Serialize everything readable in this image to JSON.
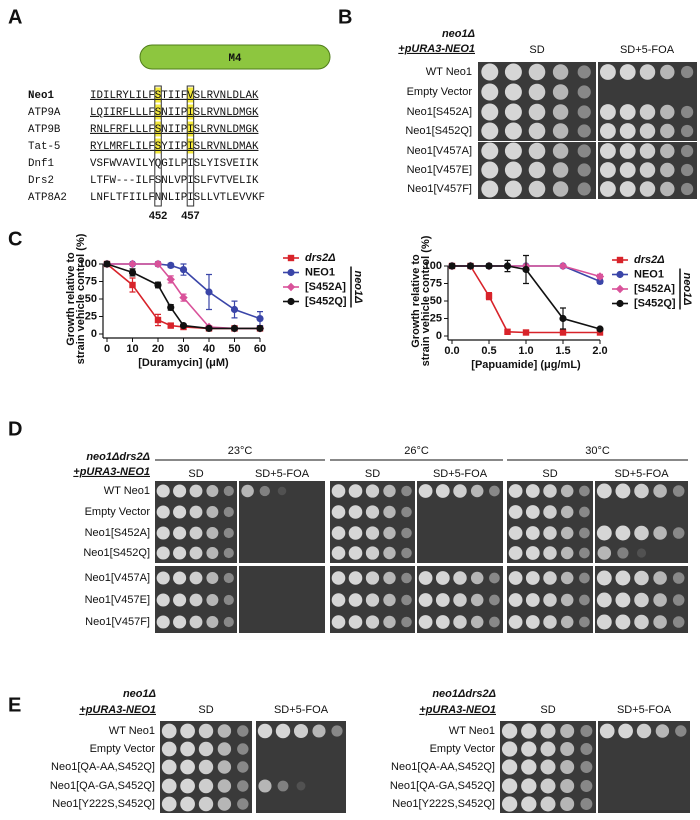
{
  "panel_labels": [
    "A",
    "B",
    "C",
    "D",
    "E"
  ],
  "panel_a": {
    "domain_label": "M4",
    "alignment": [
      {
        "name": "Neo1",
        "sequence": "IDILRYLILFSTIIFVSLRVNLDLAK"
      },
      {
        "name": "ATP9A",
        "sequence": "LQIIRFLLLFSNIIPISLRVNLDMGK"
      },
      {
        "name": "ATP9B",
        "sequence": "RNLFRFLLLFSNIIPISLRVNLDMGK"
      },
      {
        "name": "Tat-5",
        "sequence": "RYLMRFLILFSYIIPISLRVNLDMAK"
      },
      {
        "name": "Dnf1",
        "sequence": "VSFWVAVILYQGILPISLYISVEIIK"
      },
      {
        "name": "Drs2",
        "sequence": "LTFW---ILFSNLVPISLFVTVELIK"
      },
      {
        "name": "ATP8A2",
        "sequence": "LNFLTFIILFNNLIPISLLVTLEVVKF"
      }
    ],
    "positions": [
      "452",
      "457"
    ]
  },
  "panel_b": {
    "genotype": [
      "neo1Δ",
      "+pURA3-NEO1"
    ],
    "media": [
      "SD",
      "SD+5-FOA"
    ],
    "strains": [
      "WT Neo1",
      "Empty Vector",
      "Neo1[S452A]",
      "Neo1[S452Q]",
      "Neo1[V457A]",
      "Neo1[V457E]",
      "Neo1[V457F]"
    ]
  },
  "chart_data": [
    {
      "type": "line",
      "x_label": "[Duramycin] (μM)",
      "y_label": [
        "Growth relative to",
        "strain vehicle control (%)"
      ],
      "x": [
        0,
        10,
        20,
        25,
        30,
        40,
        50,
        60
      ],
      "xlim": [
        0,
        60
      ],
      "xticks": [
        0,
        10,
        20,
        30,
        40,
        50,
        60
      ],
      "ylim": [
        0,
        100
      ],
      "yticks": [
        0,
        25,
        50,
        75,
        100
      ],
      "legend_group": "neo1Δ",
      "series": [
        {
          "name": "drs2Δ",
          "color": "#d8232a",
          "marker": "square",
          "values": [
            100,
            70,
            20,
            12,
            10,
            8,
            8,
            8
          ],
          "errors": [
            3,
            10,
            8,
            2,
            2,
            1,
            1,
            1
          ]
        },
        {
          "name": "NEO1",
          "color": "#3a45a8",
          "marker": "circle",
          "values": [
            100,
            100,
            100,
            98,
            92,
            60,
            35,
            22
          ],
          "errors": [
            2,
            2,
            3,
            3,
            8,
            25,
            12,
            10
          ]
        },
        {
          "name": "[S452A]",
          "color": "#d9529a",
          "marker": "diamond",
          "values": [
            100,
            100,
            100,
            78,
            52,
            10,
            8,
            8
          ],
          "errors": [
            2,
            2,
            3,
            5,
            5,
            2,
            1,
            1
          ]
        },
        {
          "name": "[S452Q]",
          "color": "#111111",
          "marker": "circle",
          "values": [
            100,
            88,
            70,
            38,
            12,
            8,
            8,
            8
          ],
          "errors": [
            3,
            5,
            4,
            4,
            2,
            1,
            1,
            1
          ]
        }
      ]
    },
    {
      "type": "line",
      "x_label": "[Papuamide] (μg/mL)",
      "y_label": [
        "Growth relative to",
        "strain vehicle control (%)"
      ],
      "x": [
        0,
        0.25,
        0.5,
        0.75,
        1.0,
        1.5,
        2.0
      ],
      "xlim": [
        0,
        2
      ],
      "xticks": [
        {
          "value": 0,
          "label": "0.0"
        },
        0.5,
        {
          "value": 1,
          "label": "1.0"
        },
        1.5,
        {
          "value": 2,
          "label": "2.0"
        }
      ],
      "ylim": [
        0,
        100
      ],
      "yticks": [
        0,
        25,
        50,
        75,
        100
      ],
      "legend_group": "neo1Δ",
      "series": [
        {
          "name": "drs2Δ",
          "color": "#d8232a",
          "marker": "square",
          "values": [
            100,
            100,
            57,
            6,
            5,
            5,
            5
          ],
          "errors": [
            3,
            3,
            5,
            1,
            1,
            1,
            1
          ]
        },
        {
          "name": "NEO1",
          "color": "#3a45a8",
          "marker": "circle",
          "values": [
            100,
            100,
            100,
            100,
            100,
            100,
            78
          ],
          "errors": [
            2,
            2,
            2,
            2,
            2,
            2,
            3
          ]
        },
        {
          "name": "[S452A]",
          "color": "#d9529a",
          "marker": "diamond",
          "values": [
            100,
            100,
            100,
            100,
            100,
            100,
            85
          ],
          "errors": [
            2,
            2,
            2,
            2,
            2,
            2,
            3
          ]
        },
        {
          "name": "[S452Q]",
          "color": "#111111",
          "marker": "circle",
          "values": [
            100,
            100,
            100,
            100,
            95,
            25,
            10
          ],
          "errors": [
            3,
            3,
            3,
            8,
            20,
            15,
            2
          ]
        }
      ]
    }
  ],
  "panel_d": {
    "genotype": [
      "neo1Δdrs2Δ",
      "+pURA3-NEO1"
    ],
    "temperatures": [
      "23°C",
      "26°C",
      "30°C"
    ],
    "media": [
      "SD",
      "SD+5-FOA"
    ],
    "strains": [
      "WT Neo1",
      "Empty Vector",
      "Neo1[S452A]",
      "Neo1[S452Q]",
      "Neo1[V457A]",
      "Neo1[V457E]",
      "Neo1[V457F]"
    ]
  },
  "panel_e": {
    "left": {
      "genotype": [
        "neo1Δ",
        "+pURA3-NEO1"
      ],
      "media": [
        "SD",
        "SD+5-FOA"
      ],
      "strains": [
        "WT Neo1",
        "Empty Vector",
        "Neo1[QA-AA,S452Q]",
        "Neo1[QA-GA,S452Q]",
        "Neo1[Y222S,S452Q]"
      ]
    },
    "right": {
      "genotype": [
        "neo1Δdrs2Δ",
        "+pURA3-NEO1"
      ],
      "media": [
        "SD",
        "SD+5-FOA"
      ],
      "strains": [
        "WT Neo1",
        "Empty Vector",
        "Neo1[QA-AA,S452Q]",
        "Neo1[QA-GA,S452Q]",
        "Neo1[Y222S,S452Q]"
      ]
    }
  }
}
